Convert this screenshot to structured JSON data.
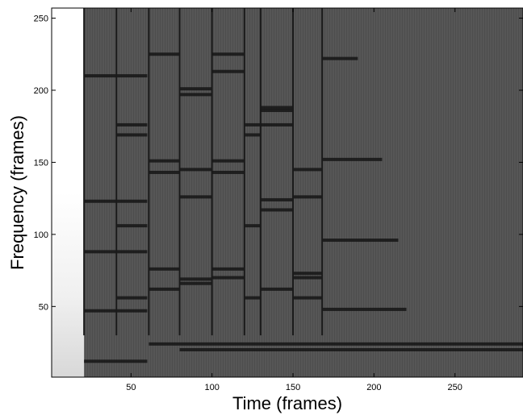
{
  "chart_data": {
    "type": "heatmap",
    "title": "",
    "xlabel": "Time (frames)",
    "ylabel": "Frequency (frames)",
    "xlim": [
      1,
      292
    ],
    "ylim": [
      1,
      257
    ],
    "x_ticks": [
      50,
      100,
      150,
      200,
      250
    ],
    "y_ticks": [
      50,
      100,
      150,
      200,
      250
    ],
    "colormap": "grayscale",
    "colors": {
      "background": "#565656",
      "dark": "#151515",
      "blank": "#ffffff"
    },
    "blank_region_until_frame": 21,
    "note_onsets": [
      21,
      41,
      61,
      80,
      100,
      120,
      130,
      150,
      168
    ],
    "harmonic_segments": [
      {
        "t0": 21,
        "t1": 60,
        "freq": 12
      },
      {
        "t0": 21,
        "t1": 60,
        "freq": 47
      },
      {
        "t0": 21,
        "t1": 60,
        "freq": 88
      },
      {
        "t0": 21,
        "t1": 60,
        "freq": 123
      },
      {
        "t0": 21,
        "t1": 60,
        "freq": 210
      },
      {
        "t0": 41,
        "t1": 60,
        "freq": 56
      },
      {
        "t0": 41,
        "t1": 60,
        "freq": 106
      },
      {
        "t0": 41,
        "t1": 60,
        "freq": 169
      },
      {
        "t0": 41,
        "t1": 60,
        "freq": 176
      },
      {
        "t0": 61,
        "t1": 292,
        "freq": 24
      },
      {
        "t0": 61,
        "t1": 80,
        "freq": 62
      },
      {
        "t0": 61,
        "t1": 80,
        "freq": 76
      },
      {
        "t0": 61,
        "t1": 80,
        "freq": 143
      },
      {
        "t0": 61,
        "t1": 80,
        "freq": 151
      },
      {
        "t0": 61,
        "t1": 80,
        "freq": 225
      },
      {
        "t0": 80,
        "t1": 292,
        "freq": 20
      },
      {
        "t0": 80,
        "t1": 100,
        "freq": 66
      },
      {
        "t0": 80,
        "t1": 100,
        "freq": 69
      },
      {
        "t0": 80,
        "t1": 100,
        "freq": 126
      },
      {
        "t0": 80,
        "t1": 100,
        "freq": 145
      },
      {
        "t0": 80,
        "t1": 100,
        "freq": 197
      },
      {
        "t0": 80,
        "t1": 100,
        "freq": 201
      },
      {
        "t0": 100,
        "t1": 120,
        "freq": 70
      },
      {
        "t0": 100,
        "t1": 120,
        "freq": 76
      },
      {
        "t0": 100,
        "t1": 120,
        "freq": 143
      },
      {
        "t0": 100,
        "t1": 120,
        "freq": 151
      },
      {
        "t0": 100,
        "t1": 120,
        "freq": 213
      },
      {
        "t0": 100,
        "t1": 120,
        "freq": 225
      },
      {
        "t0": 120,
        "t1": 130,
        "freq": 56
      },
      {
        "t0": 120,
        "t1": 130,
        "freq": 106
      },
      {
        "t0": 120,
        "t1": 130,
        "freq": 169
      },
      {
        "t0": 120,
        "t1": 130,
        "freq": 176
      },
      {
        "t0": 130,
        "t1": 150,
        "freq": 62
      },
      {
        "t0": 130,
        "t1": 150,
        "freq": 117
      },
      {
        "t0": 130,
        "t1": 150,
        "freq": 124
      },
      {
        "t0": 130,
        "t1": 150,
        "freq": 176
      },
      {
        "t0": 130,
        "t1": 150,
        "freq": 186
      },
      {
        "t0": 130,
        "t1": 150,
        "freq": 188
      },
      {
        "t0": 150,
        "t1": 168,
        "freq": 56
      },
      {
        "t0": 150,
        "t1": 168,
        "freq": 70
      },
      {
        "t0": 150,
        "t1": 168,
        "freq": 73
      },
      {
        "t0": 150,
        "t1": 168,
        "freq": 126
      },
      {
        "t0": 150,
        "t1": 168,
        "freq": 145
      },
      {
        "t0": 168,
        "t1": 215,
        "freq": 96
      },
      {
        "t0": 168,
        "t1": 205,
        "freq": 152
      },
      {
        "t0": 168,
        "t1": 190,
        "freq": 222
      },
      {
        "t0": 168,
        "t1": 220,
        "freq": 48
      }
    ]
  }
}
